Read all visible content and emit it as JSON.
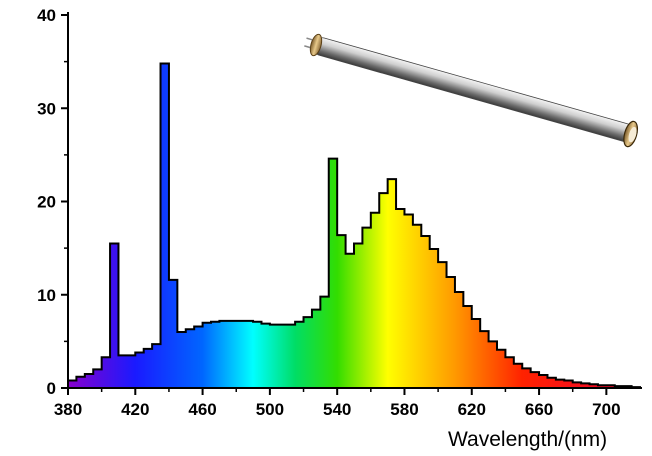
{
  "chart_data": {
    "type": "bar",
    "title": "",
    "xlabel": "Wavelength/(nm)",
    "ylabel": "",
    "xlim": [
      380,
      720
    ],
    "ylim": [
      0,
      40
    ],
    "x_ticks": [
      380,
      420,
      460,
      500,
      540,
      580,
      620,
      660,
      700
    ],
    "y_ticks": [
      0,
      10,
      20,
      30,
      40
    ],
    "grid": false,
    "legend": "none",
    "bin_width_nm": 5,
    "x": [
      380,
      385,
      390,
      395,
      400,
      405,
      410,
      415,
      420,
      425,
      430,
      435,
      440,
      445,
      450,
      455,
      460,
      465,
      470,
      475,
      480,
      485,
      490,
      495,
      500,
      505,
      510,
      515,
      520,
      525,
      530,
      535,
      540,
      545,
      550,
      555,
      560,
      565,
      570,
      575,
      580,
      585,
      590,
      595,
      600,
      605,
      610,
      615,
      620,
      625,
      630,
      635,
      640,
      645,
      650,
      655,
      660,
      665,
      670,
      675,
      680,
      685,
      690,
      695,
      700,
      705,
      710,
      715
    ],
    "values": [
      0.8,
      1.2,
      1.5,
      2.0,
      3.3,
      15.5,
      3.5,
      3.5,
      3.8,
      4.2,
      4.7,
      34.8,
      11.6,
      6.0,
      6.3,
      6.6,
      7.0,
      7.1,
      7.2,
      7.2,
      7.2,
      7.2,
      7.1,
      6.9,
      6.8,
      6.8,
      6.8,
      7.1,
      7.6,
      8.4,
      9.8,
      24.6,
      16.4,
      14.4,
      15.5,
      17.2,
      18.8,
      20.9,
      22.4,
      19.2,
      18.6,
      17.5,
      16.3,
      14.9,
      13.5,
      11.9,
      10.3,
      8.8,
      7.4,
      6.1,
      5.0,
      4.1,
      3.3,
      2.6,
      2.1,
      1.7,
      1.4,
      1.1,
      0.9,
      0.8,
      0.6,
      0.5,
      0.4,
      0.3,
      0.3,
      0.2,
      0.2,
      0.1
    ],
    "colors": {
      "spectrum_stops": [
        {
          "nm": 380,
          "color": "#8800cc"
        },
        {
          "nm": 420,
          "color": "#1a1aff"
        },
        {
          "nm": 460,
          "color": "#0066ff"
        },
        {
          "nm": 490,
          "color": "#00ffff"
        },
        {
          "nm": 515,
          "color": "#00dd66"
        },
        {
          "nm": 540,
          "color": "#33dd00"
        },
        {
          "nm": 570,
          "color": "#ffff00"
        },
        {
          "nm": 610,
          "color": "#ff9900"
        },
        {
          "nm": 650,
          "color": "#ff2200"
        },
        {
          "nm": 720,
          "color": "#ee0033"
        }
      ],
      "outline": "#000000",
      "axis": "#000000"
    }
  },
  "decoration": {
    "icon": "fluorescent-tube-icon"
  }
}
